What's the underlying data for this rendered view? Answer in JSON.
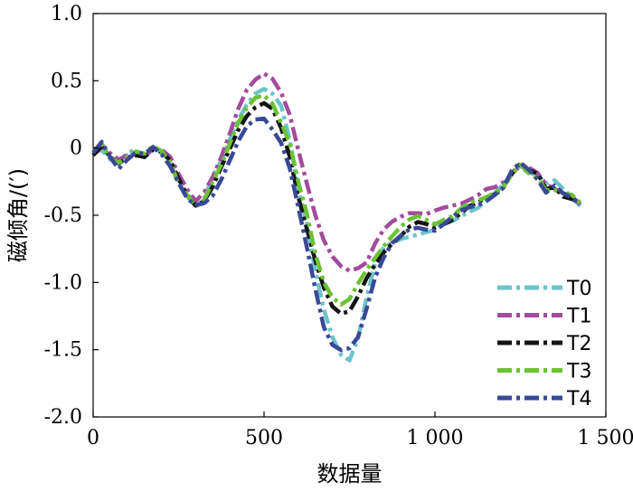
{
  "chart_data": {
    "type": "line",
    "xlabel": "数据量",
    "ylabel": "磁倾角/(′)",
    "xlim": [
      0,
      1500
    ],
    "ylim": [
      -2.0,
      1.0
    ],
    "x_ticks": [
      0,
      500,
      1000,
      1500
    ],
    "x_tick_labels": [
      "0",
      "500",
      "1 000",
      "1 500"
    ],
    "y_ticks": [
      1.0,
      0.5,
      0,
      -0.5,
      -1.0,
      -1.5,
      -2.0
    ],
    "y_tick_labels": [
      "1.0",
      "0.5",
      "0",
      "-0.5",
      "-1.0",
      "-1.5",
      "-2.0"
    ],
    "grid": false,
    "legend": "bottom-right",
    "x": [
      0,
      25,
      50,
      75,
      100,
      125,
      150,
      175,
      200,
      225,
      250,
      275,
      300,
      325,
      350,
      375,
      400,
      425,
      450,
      475,
      500,
      525,
      550,
      575,
      600,
      625,
      650,
      675,
      700,
      725,
      750,
      775,
      800,
      825,
      850,
      875,
      900,
      925,
      950,
      975,
      1000,
      1025,
      1050,
      1075,
      1100,
      1125,
      1150,
      1175,
      1200,
      1225,
      1250,
      1275,
      1300,
      1325,
      1350,
      1375,
      1400,
      1425
    ],
    "series": [
      {
        "name": "T0",
        "color": "#6cc4c9",
        "values": [
          -0.02,
          0.0,
          -0.08,
          -0.12,
          -0.05,
          -0.02,
          -0.06,
          0.0,
          -0.03,
          -0.1,
          -0.25,
          -0.35,
          -0.4,
          -0.36,
          -0.2,
          -0.1,
          0.05,
          0.2,
          0.33,
          0.42,
          0.45,
          0.4,
          0.3,
          0.05,
          -0.3,
          -0.55,
          -0.9,
          -1.2,
          -1.42,
          -1.55,
          -1.58,
          -1.4,
          -1.1,
          -0.85,
          -0.75,
          -0.72,
          -0.68,
          -0.65,
          -0.63,
          -0.62,
          -0.62,
          -0.58,
          -0.55,
          -0.5,
          -0.46,
          -0.44,
          -0.4,
          -0.35,
          -0.28,
          -0.18,
          -0.12,
          -0.18,
          -0.2,
          -0.28,
          -0.25,
          -0.3,
          -0.35,
          -0.42
        ]
      },
      {
        "name": "T1",
        "color": "#a24c9e",
        "values": [
          0.0,
          0.02,
          -0.05,
          -0.1,
          -0.06,
          -0.02,
          -0.05,
          0.0,
          -0.02,
          -0.08,
          -0.2,
          -0.3,
          -0.38,
          -0.32,
          -0.22,
          -0.08,
          0.1,
          0.3,
          0.45,
          0.52,
          0.55,
          0.5,
          0.4,
          0.25,
          0.0,
          -0.25,
          -0.5,
          -0.7,
          -0.82,
          -0.88,
          -0.9,
          -0.88,
          -0.85,
          -0.72,
          -0.62,
          -0.55,
          -0.5,
          -0.47,
          -0.48,
          -0.5,
          -0.48,
          -0.45,
          -0.42,
          -0.4,
          -0.38,
          -0.36,
          -0.32,
          -0.3,
          -0.25,
          -0.18,
          -0.12,
          -0.15,
          -0.2,
          -0.28,
          -0.3,
          -0.32,
          -0.35,
          -0.42
        ]
      },
      {
        "name": "T2",
        "color": "#151515",
        "values": [
          -0.05,
          0.0,
          -0.08,
          -0.12,
          -0.06,
          -0.04,
          -0.06,
          -0.02,
          -0.04,
          -0.1,
          -0.22,
          -0.34,
          -0.42,
          -0.4,
          -0.3,
          -0.15,
          0.0,
          0.15,
          0.25,
          0.3,
          0.32,
          0.28,
          0.15,
          -0.05,
          -0.35,
          -0.6,
          -0.85,
          -1.05,
          -1.18,
          -1.22,
          -1.2,
          -1.1,
          -0.98,
          -0.88,
          -0.78,
          -0.7,
          -0.64,
          -0.58,
          -0.56,
          -0.58,
          -0.6,
          -0.56,
          -0.52,
          -0.48,
          -0.44,
          -0.42,
          -0.38,
          -0.34,
          -0.28,
          -0.18,
          -0.12,
          -0.18,
          -0.2,
          -0.3,
          -0.28,
          -0.35,
          -0.38,
          -0.42
        ]
      },
      {
        "name": "T3",
        "color": "#6cc235",
        "values": [
          -0.03,
          0.02,
          -0.08,
          -0.1,
          -0.05,
          -0.02,
          -0.05,
          0.0,
          -0.03,
          -0.1,
          -0.25,
          -0.34,
          -0.44,
          -0.4,
          -0.26,
          -0.12,
          0.05,
          0.2,
          0.3,
          0.36,
          0.38,
          0.33,
          0.2,
          0.05,
          -0.25,
          -0.5,
          -0.8,
          -1.0,
          -1.1,
          -1.15,
          -1.12,
          -1.02,
          -0.92,
          -0.82,
          -0.72,
          -0.64,
          -0.58,
          -0.54,
          -0.52,
          -0.54,
          -0.56,
          -0.52,
          -0.5,
          -0.46,
          -0.42,
          -0.4,
          -0.36,
          -0.32,
          -0.28,
          -0.2,
          -0.14,
          -0.2,
          -0.22,
          -0.3,
          -0.3,
          -0.34,
          -0.36,
          -0.42
        ]
      },
      {
        "name": "T4",
        "color": "#3a4898",
        "values": [
          -0.05,
          0.04,
          -0.06,
          -0.14,
          -0.08,
          -0.04,
          -0.06,
          0.0,
          -0.04,
          -0.12,
          -0.25,
          -0.38,
          -0.44,
          -0.42,
          -0.35,
          -0.22,
          -0.08,
          0.05,
          0.15,
          0.2,
          0.22,
          0.15,
          0.05,
          -0.15,
          -0.45,
          -0.75,
          -1.05,
          -1.32,
          -1.45,
          -1.5,
          -1.5,
          -1.42,
          -1.2,
          -0.95,
          -0.8,
          -0.7,
          -0.66,
          -0.62,
          -0.6,
          -0.6,
          -0.6,
          -0.56,
          -0.52,
          -0.48,
          -0.45,
          -0.42,
          -0.38,
          -0.34,
          -0.3,
          -0.18,
          -0.12,
          -0.16,
          -0.22,
          -0.32,
          -0.28,
          -0.35,
          -0.38,
          -0.42
        ]
      }
    ]
  }
}
